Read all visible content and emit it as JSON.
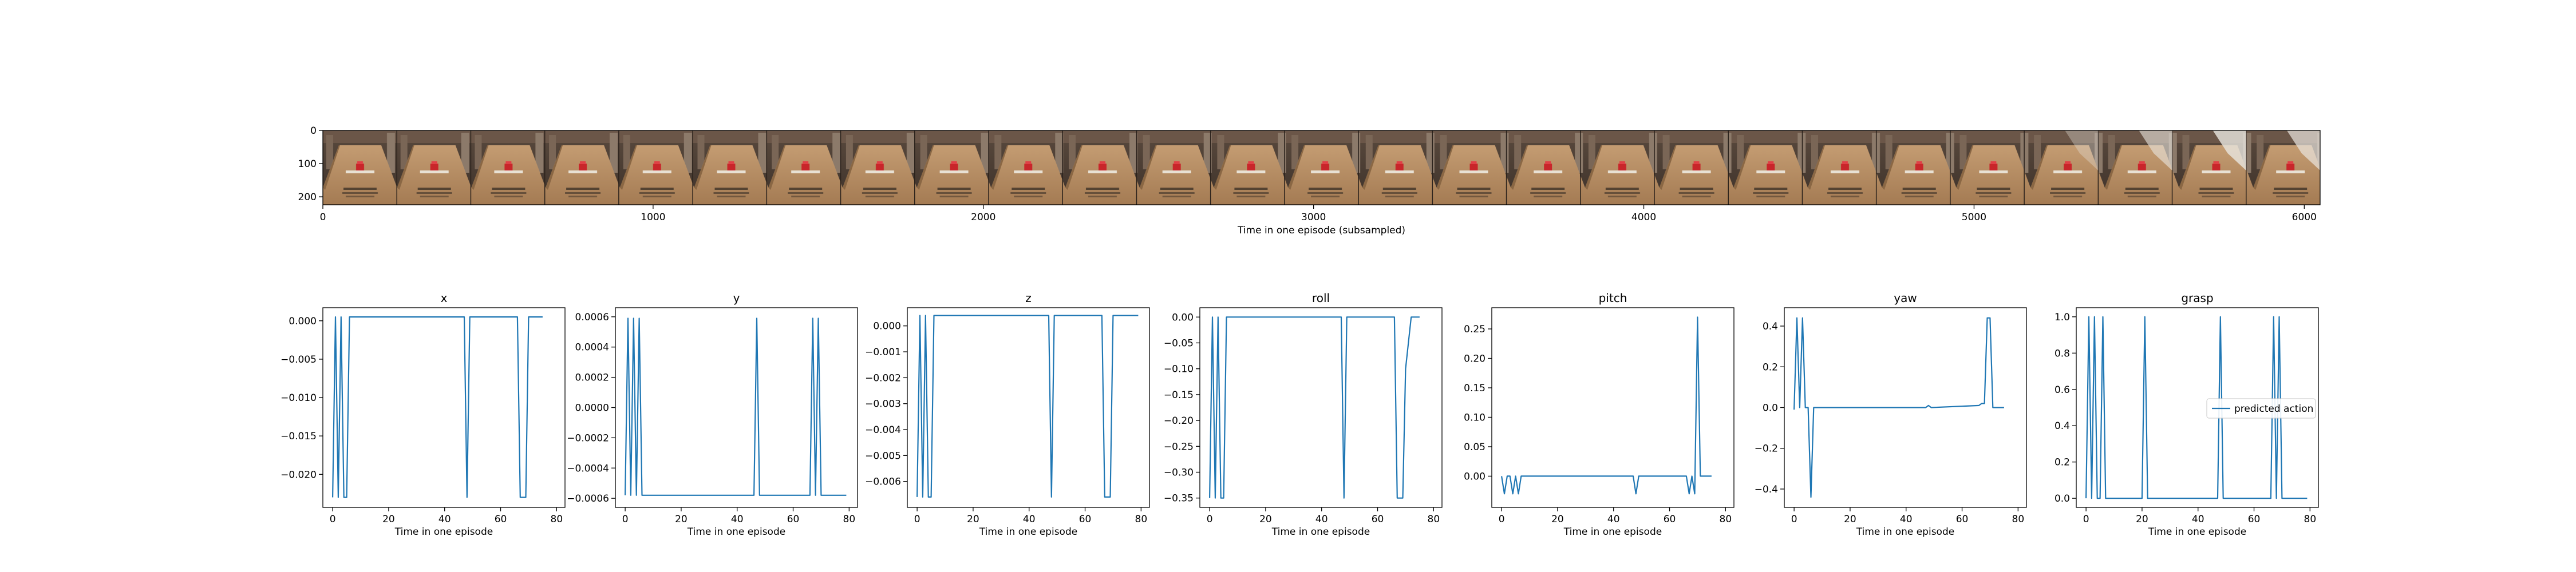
{
  "strip": {
    "xlabel": "Time in one episode (subsampled)",
    "xticks": [
      0,
      1000,
      2000,
      3000,
      4000,
      5000,
      6000
    ],
    "yticks": [
      0,
      100,
      200
    ],
    "xlim": [
      0,
      6048
    ],
    "ylim": [
      0,
      224
    ],
    "frame_count": 27
  },
  "chart_data": [
    {
      "type": "line",
      "title": "x",
      "xlabel": "Time in one episode",
      "ylabel": "",
      "xticks": [
        0,
        20,
        40,
        60,
        80
      ],
      "xlim": [
        -3.5,
        83
      ],
      "yticks": [
        0.0,
        -0.005,
        -0.01,
        -0.015,
        -0.02
      ],
      "ytick_labels": [
        "0.000",
        "−0.005",
        "−0.010",
        "−0.015",
        "−0.020"
      ],
      "ylim": [
        -0.0243,
        0.0017
      ],
      "series": [
        {
          "name": "predicted action",
          "x": [
            0,
            1,
            2,
            3,
            4,
            5,
            6,
            7,
            47,
            48,
            49,
            66,
            67,
            68,
            69,
            70,
            71,
            75
          ],
          "values": [
            -0.023,
            0.0005,
            -0.023,
            0.0005,
            -0.023,
            -0.023,
            0.0005,
            0.0005,
            0.0005,
            -0.023,
            0.0005,
            0.0005,
            -0.023,
            -0.023,
            -0.023,
            0.0005,
            0.0005,
            0.0005
          ]
        }
      ]
    },
    {
      "type": "line",
      "title": "y",
      "xlabel": "Time in one episode",
      "ylabel": "",
      "xticks": [
        0,
        20,
        40,
        60,
        80
      ],
      "xlim": [
        -3.5,
        83
      ],
      "yticks": [
        0.0006,
        0.0004,
        0.0002,
        0.0,
        -0.0002,
        -0.0004,
        -0.0006
      ],
      "ytick_labels": [
        "0.0006",
        "0.0004",
        "0.0002",
        "0.0000",
        "−0.0002",
        "−0.0004",
        "−0.0006"
      ],
      "ylim": [
        -0.00066,
        0.00066
      ],
      "series": [
        {
          "name": "predicted action",
          "x": [
            0,
            1,
            2,
            3,
            4,
            5,
            6,
            7,
            46,
            47,
            48,
            66,
            67,
            68,
            69,
            70,
            71,
            75,
            79
          ],
          "values": [
            -0.00058,
            0.00059,
            -0.00058,
            0.00059,
            -0.00058,
            0.00059,
            -0.00058,
            -0.00058,
            -0.00058,
            0.00059,
            -0.00058,
            -0.00058,
            0.00059,
            -0.00058,
            0.00059,
            -0.00058,
            -0.00058,
            -0.00058,
            -0.00058
          ]
        }
      ]
    },
    {
      "type": "line",
      "title": "z",
      "xlabel": "Time in one episode",
      "ylabel": "",
      "xticks": [
        0,
        20,
        40,
        60,
        80
      ],
      "xlim": [
        -3.5,
        83
      ],
      "yticks": [
        0.0,
        -0.001,
        -0.002,
        -0.003,
        -0.004,
        -0.005,
        -0.006
      ],
      "ytick_labels": [
        "0.000",
        "−0.001",
        "−0.002",
        "−0.003",
        "−0.004",
        "−0.005",
        "−0.006"
      ],
      "ylim": [
        -0.007,
        0.0007
      ],
      "series": [
        {
          "name": "predicted action",
          "x": [
            0,
            1,
            2,
            3,
            4,
            5,
            6,
            7,
            47,
            48,
            49,
            66,
            67,
            68,
            69,
            70,
            71,
            75,
            79
          ],
          "values": [
            -0.0066,
            0.0004,
            -0.0066,
            0.0004,
            -0.0066,
            -0.0066,
            0.0004,
            0.0004,
            0.0004,
            -0.0066,
            0.0004,
            0.0004,
            -0.0066,
            -0.0066,
            -0.0066,
            0.0004,
            0.0004,
            0.0004,
            0.0004
          ]
        }
      ]
    },
    {
      "type": "line",
      "title": "roll",
      "xlabel": "Time in one episode",
      "ylabel": "",
      "xticks": [
        0,
        20,
        40,
        60,
        80
      ],
      "xlim": [
        -3.5,
        83
      ],
      "yticks": [
        0.0,
        -0.05,
        -0.1,
        -0.15,
        -0.2,
        -0.25,
        -0.3,
        -0.35
      ],
      "ytick_labels": [
        "0.00",
        "−0.05",
        "−0.10",
        "−0.15",
        "−0.20",
        "−0.25",
        "−0.30",
        "−0.35"
      ],
      "ylim": [
        -0.368,
        0.018
      ],
      "series": [
        {
          "name": "predicted action",
          "x": [
            0,
            1,
            2,
            3,
            4,
            5,
            6,
            7,
            47,
            48,
            49,
            66,
            67,
            68,
            69,
            70,
            71,
            72,
            75
          ],
          "values": [
            -0.35,
            0.0,
            -0.35,
            0.0,
            -0.35,
            -0.35,
            0.0,
            0.0,
            0.0,
            -0.35,
            0.0,
            0.0,
            -0.35,
            -0.35,
            -0.35,
            -0.1,
            -0.05,
            0.0,
            0.0
          ]
        }
      ]
    },
    {
      "type": "line",
      "title": "pitch",
      "xlabel": "Time in one episode",
      "ylabel": "",
      "xticks": [
        0,
        20,
        40,
        60,
        80
      ],
      "xlim": [
        -3.5,
        83
      ],
      "yticks": [
        0.25,
        0.2,
        0.15,
        0.1,
        0.05,
        0.0
      ],
      "ytick_labels": [
        "0.25",
        "0.20",
        "0.15",
        "0.10",
        "0.05",
        "0.00"
      ],
      "ylim": [
        -0.053,
        0.286
      ],
      "series": [
        {
          "name": "predicted action",
          "x": [
            0,
            1,
            2,
            3,
            4,
            5,
            6,
            7,
            47,
            48,
            49,
            66,
            67,
            68,
            69,
            70,
            71,
            72,
            75
          ],
          "values": [
            0.0,
            -0.03,
            0.0,
            0.0,
            -0.03,
            0.0,
            -0.03,
            0.0,
            0.0,
            -0.03,
            0.0,
            0.0,
            -0.03,
            0.0,
            -0.03,
            0.27,
            0.0,
            0.0,
            0.0
          ]
        }
      ]
    },
    {
      "type": "line",
      "title": "yaw",
      "xlabel": "Time in one episode",
      "ylabel": "",
      "xticks": [
        0,
        20,
        40,
        60,
        80
      ],
      "xlim": [
        -3.5,
        83
      ],
      "yticks": [
        0.4,
        0.2,
        0.0,
        -0.2,
        -0.4
      ],
      "ytick_labels": [
        "0.4",
        "0.2",
        "0.0",
        "−0.2",
        "−0.4"
      ],
      "ylim": [
        -0.49,
        0.49
      ],
      "series": [
        {
          "name": "predicted action",
          "x": [
            0,
            1,
            2,
            3,
            4,
            5,
            6,
            7,
            47,
            48,
            49,
            66,
            67,
            68,
            69,
            70,
            71,
            72,
            75
          ],
          "values": [
            -0.01,
            0.44,
            0.0,
            0.44,
            0.0,
            0.0,
            -0.44,
            0.0,
            0.0,
            0.01,
            0.0,
            0.01,
            0.02,
            0.02,
            0.44,
            0.44,
            0.0,
            0.0,
            0.0
          ]
        }
      ]
    },
    {
      "type": "line",
      "title": "grasp",
      "xlabel": "Time in one episode",
      "ylabel": "",
      "xticks": [
        0,
        20,
        40,
        60,
        80
      ],
      "xlim": [
        -3.5,
        83
      ],
      "yticks": [
        1.0,
        0.8,
        0.6,
        0.4,
        0.2,
        0.0
      ],
      "ytick_labels": [
        "1.0",
        "0.8",
        "0.6",
        "0.4",
        "0.2",
        "0.0"
      ],
      "ylim": [
        -0.05,
        1.05
      ],
      "series": [
        {
          "name": "predicted action",
          "x": [
            0,
            1,
            2,
            3,
            4,
            5,
            6,
            7,
            20,
            21,
            22,
            47,
            48,
            49,
            66,
            67,
            68,
            69,
            70,
            71,
            75,
            79
          ],
          "values": [
            0,
            1,
            0,
            1,
            0,
            0,
            1,
            0,
            0,
            1,
            0,
            0,
            1,
            0,
            0,
            1,
            0,
            1,
            0,
            0,
            0,
            0
          ]
        }
      ]
    }
  ],
  "legend": {
    "label": "predicted action",
    "color": "#1f77b4"
  }
}
